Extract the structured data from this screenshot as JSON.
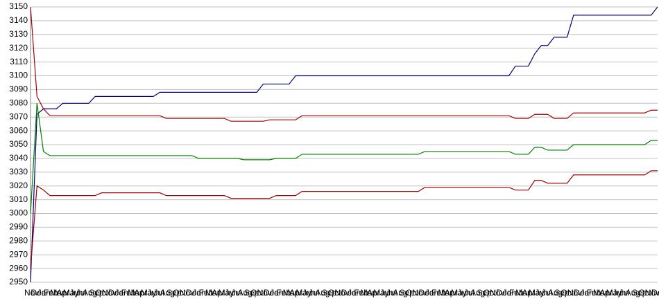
{
  "chart_data": {
    "type": "line",
    "categories": [
      "Nov",
      "Dec",
      "Jan",
      "Feb",
      "Mar",
      "Apr",
      "May",
      "Jun",
      "Jul",
      "Aug",
      "Sep",
      "Oct",
      "Nov",
      "Dec",
      "Jan",
      "Feb",
      "Mar",
      "Apr",
      "May",
      "Jun",
      "Jul",
      "Aug",
      "Sep",
      "Oct",
      "Nov",
      "Dec",
      "Jan",
      "Feb",
      "Mar",
      "Apr",
      "May",
      "Jun",
      "Jul",
      "Aug",
      "Sep",
      "Oct",
      "Nov",
      "Dec",
      "Jan",
      "Feb",
      "Mar",
      "Apr",
      "May",
      "Jun",
      "Jul",
      "Aug",
      "Sep",
      "Oct",
      "Nov",
      "Dec",
      "Jan",
      "Feb",
      "Mar",
      "Apr",
      "May",
      "Jun",
      "Jul",
      "Aug",
      "Sep",
      "Oct",
      "Nov",
      "Dec",
      "Jan",
      "Feb",
      "Mar",
      "Apr",
      "May",
      "Jun",
      "Jul",
      "Aug",
      "Sep",
      "Oct",
      "Nov",
      "Dec",
      "Jan",
      "Feb",
      "Mar",
      "Apr",
      "May",
      "Jun",
      "Jul",
      "Aug",
      "Sep",
      "Oct",
      "Nov",
      "Dec",
      "Jan",
      "Feb",
      "Mar",
      "Apr",
      "May",
      "Jun",
      "Jul",
      "Aug",
      "Sep",
      "Oct",
      "Nov",
      "Dec"
    ],
    "series": [
      {
        "color": "#000080",
        "values": [
          2950,
          3072,
          3076,
          3076,
          3076,
          3080,
          3080,
          3080,
          3080,
          3080,
          3085,
          3085,
          3085,
          3085,
          3085,
          3085,
          3085,
          3085,
          3085,
          3085,
          3088,
          3088,
          3088,
          3088,
          3088,
          3088,
          3088,
          3088,
          3088,
          3088,
          3088,
          3088,
          3088,
          3088,
          3088,
          3088,
          3094,
          3094,
          3094,
          3094,
          3094,
          3100,
          3100,
          3100,
          3100,
          3100,
          3100,
          3100,
          3100,
          3100,
          3100,
          3100,
          3100,
          3100,
          3100,
          3100,
          3100,
          3100,
          3100,
          3100,
          3100,
          3100,
          3100,
          3100,
          3100,
          3100,
          3100,
          3100,
          3100,
          3100,
          3100,
          3100,
          3100,
          3100,
          3100,
          3107,
          3107,
          3107,
          3116,
          3122,
          3122,
          3128,
          3128,
          3128,
          3144,
          3144,
          3144,
          3144,
          3144,
          3144,
          3144,
          3144,
          3144,
          3144,
          3144,
          3144,
          3144,
          3150
        ]
      },
      {
        "color": "#a00000",
        "values": [
          3150,
          3085,
          3076,
          3071,
          3071,
          3071,
          3071,
          3071,
          3071,
          3071,
          3071,
          3071,
          3071,
          3071,
          3071,
          3071,
          3071,
          3071,
          3071,
          3071,
          3071,
          3069,
          3069,
          3069,
          3069,
          3069,
          3069,
          3069,
          3069,
          3069,
          3069,
          3067,
          3067,
          3067,
          3067,
          3067,
          3067,
          3068,
          3068,
          3068,
          3068,
          3068,
          3071,
          3071,
          3071,
          3071,
          3071,
          3071,
          3071,
          3071,
          3071,
          3071,
          3071,
          3071,
          3071,
          3071,
          3071,
          3071,
          3071,
          3071,
          3071,
          3071,
          3071,
          3071,
          3071,
          3071,
          3071,
          3071,
          3071,
          3071,
          3071,
          3071,
          3071,
          3071,
          3071,
          3069,
          3069,
          3069,
          3072,
          3072,
          3072,
          3069,
          3069,
          3069,
          3073,
          3073,
          3073,
          3073,
          3073,
          3073,
          3073,
          3073,
          3073,
          3073,
          3073,
          3073,
          3075,
          3075
        ]
      },
      {
        "color": "#008000",
        "values": [
          3000,
          3080,
          3045,
          3042,
          3042,
          3042,
          3042,
          3042,
          3042,
          3042,
          3042,
          3042,
          3042,
          3042,
          3042,
          3042,
          3042,
          3042,
          3042,
          3042,
          3042,
          3042,
          3042,
          3042,
          3042,
          3042,
          3040,
          3040,
          3040,
          3040,
          3040,
          3040,
          3040,
          3039,
          3039,
          3039,
          3039,
          3039,
          3040,
          3040,
          3040,
          3040,
          3043,
          3043,
          3043,
          3043,
          3043,
          3043,
          3043,
          3043,
          3043,
          3043,
          3043,
          3043,
          3043,
          3043,
          3043,
          3043,
          3043,
          3043,
          3043,
          3045,
          3045,
          3045,
          3045,
          3045,
          3045,
          3045,
          3045,
          3045,
          3045,
          3045,
          3045,
          3045,
          3045,
          3043,
          3043,
          3043,
          3048,
          3048,
          3046,
          3046,
          3046,
          3046,
          3050,
          3050,
          3050,
          3050,
          3050,
          3050,
          3050,
          3050,
          3050,
          3050,
          3050,
          3050,
          3053,
          3053
        ]
      },
      {
        "color": "#a00000",
        "values": [
          2960,
          3020,
          3017,
          3013,
          3013,
          3013,
          3013,
          3013,
          3013,
          3013,
          3013,
          3015,
          3015,
          3015,
          3015,
          3015,
          3015,
          3015,
          3015,
          3015,
          3015,
          3013,
          3013,
          3013,
          3013,
          3013,
          3013,
          3013,
          3013,
          3013,
          3013,
          3011,
          3011,
          3011,
          3011,
          3011,
          3011,
          3011,
          3013,
          3013,
          3013,
          3013,
          3016,
          3016,
          3016,
          3016,
          3016,
          3016,
          3016,
          3016,
          3016,
          3016,
          3016,
          3016,
          3016,
          3016,
          3016,
          3016,
          3016,
          3016,
          3016,
          3019,
          3019,
          3019,
          3019,
          3019,
          3019,
          3019,
          3019,
          3019,
          3019,
          3019,
          3019,
          3019,
          3019,
          3017,
          3017,
          3017,
          3024,
          3024,
          3022,
          3022,
          3022,
          3022,
          3028,
          3028,
          3028,
          3028,
          3028,
          3028,
          3028,
          3028,
          3028,
          3028,
          3028,
          3028,
          3031,
          3031
        ]
      }
    ],
    "ylim": [
      2950,
      3150
    ],
    "yticks": [
      2950,
      2960,
      2970,
      2980,
      2990,
      3000,
      3010,
      3020,
      3030,
      3040,
      3050,
      3060,
      3070,
      3080,
      3090,
      3100,
      3110,
      3120,
      3130,
      3140,
      3150
    ],
    "grid": true
  }
}
